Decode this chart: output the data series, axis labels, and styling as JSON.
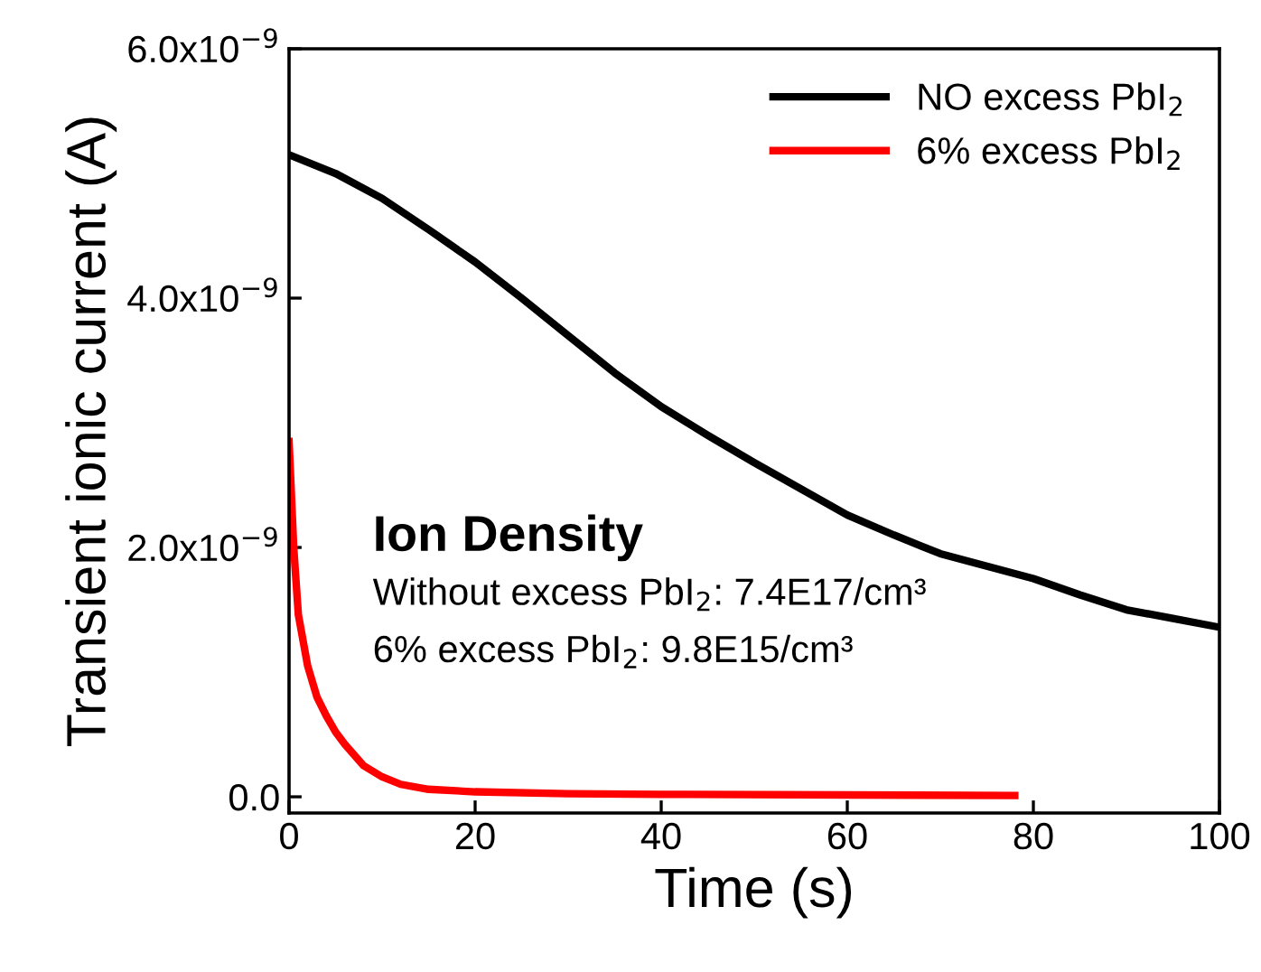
{
  "chart_data": {
    "type": "line",
    "xlabel": "Time (s)",
    "ylabel": "Transient ionic current (A)",
    "series": [
      {
        "name": "NO excess PbI$_{2}$",
        "color": "#000000",
        "x": [
          0,
          5,
          10,
          15,
          20,
          25,
          30,
          35,
          40,
          45,
          50,
          55,
          60,
          65,
          70,
          75,
          80,
          85,
          90,
          95,
          100
        ],
        "values": [
          5.15e-09,
          5e-09,
          4.8e-09,
          4.55e-09,
          4.29e-09,
          4e-09,
          3.7e-09,
          3.4e-09,
          3.13e-09,
          2.9e-09,
          2.68e-09,
          2.47e-09,
          2.26e-09,
          2.1e-09,
          1.95e-09,
          1.85e-09,
          1.75e-09,
          1.62e-09,
          1.5e-09,
          1.43e-09,
          1.36e-09
        ]
      },
      {
        "name": "6% excess PbI$_{2}$",
        "color": "#ff0000",
        "x": [
          0,
          0.5,
          1,
          2,
          3,
          4,
          5,
          6,
          8,
          10,
          12,
          15,
          20,
          30,
          40,
          60,
          78
        ],
        "values": [
          2.85e-09,
          2e-09,
          1.46e-09,
          1.05e-09,
          8e-10,
          6.5e-10,
          5.2e-10,
          4.2e-10,
          2.5e-10,
          1.6e-10,
          1e-10,
          6e-11,
          4e-11,
          2.5e-11,
          2e-11,
          1.5e-11,
          1e-11
        ]
      }
    ],
    "xlim": [
      0,
      100
    ],
    "xticks": [
      0,
      20,
      40,
      60,
      80,
      100
    ],
    "ylim": [
      -1.3e-10,
      6e-09
    ],
    "yticks": [
      {
        "value": 0,
        "label": "0.0"
      },
      {
        "value": 2e-09,
        "label": "2.0x10$^{−9}$"
      },
      {
        "value": 4e-09,
        "label": "4.0x10$^{−9}$"
      },
      {
        "value": 6e-09,
        "label": "6.0x10$^{−9}$"
      }
    ],
    "annotations": [
      "Ion Density",
      "Without excess PbI$_{2}$: 7.4E17/cm³",
      "6% excess PbI$_{2}$: 9.8E15/cm³"
    ],
    "legend": "top right",
    "grid": false,
    "marker": "none",
    "line_style": "solid"
  }
}
